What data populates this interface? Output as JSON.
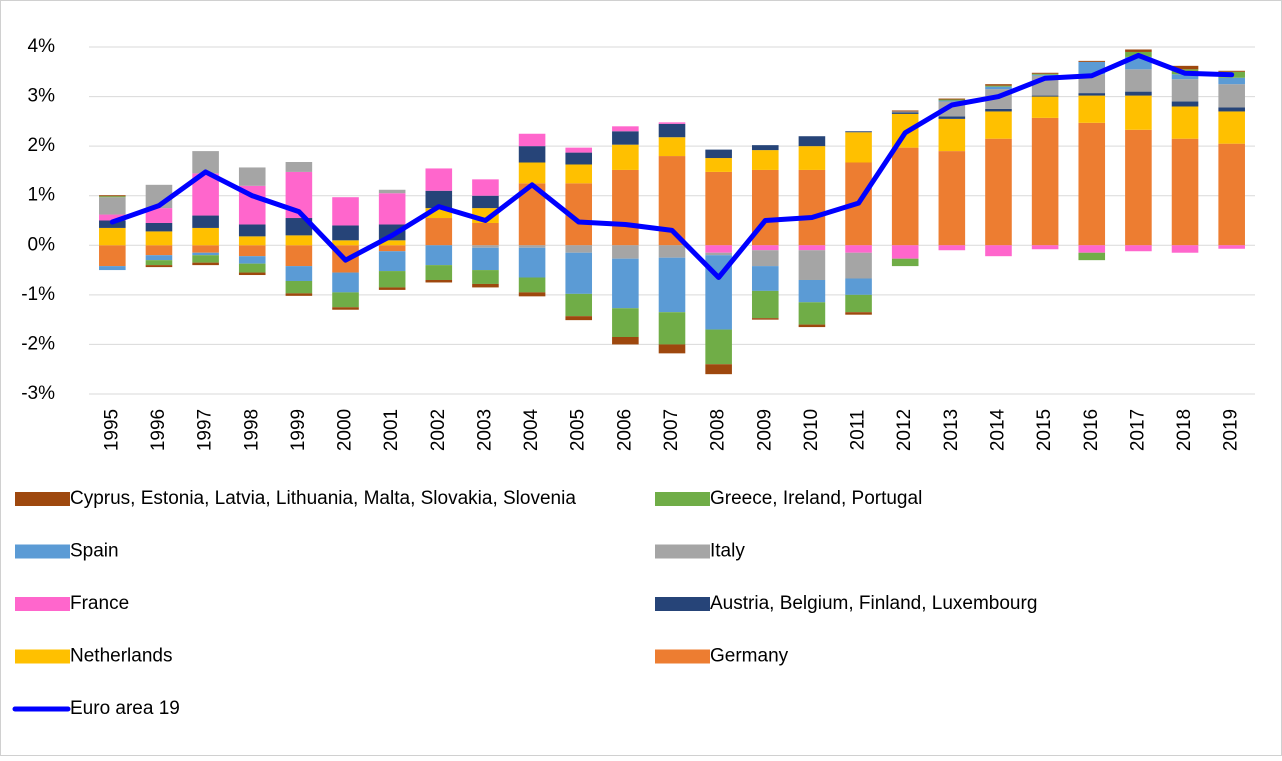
{
  "chart_data": {
    "type": "bar",
    "stacked": true,
    "categories": [
      "1995",
      "1996",
      "1997",
      "1998",
      "1999",
      "2000",
      "2001",
      "2002",
      "2003",
      "2004",
      "2005",
      "2006",
      "2007",
      "2008",
      "2009",
      "2010",
      "2011",
      "2012",
      "2013",
      "2014",
      "2015",
      "2016",
      "2017",
      "2018",
      "2019"
    ],
    "ylim": [
      -3,
      4
    ],
    "yticks": [
      {
        "value": -3,
        "label": "-3%"
      },
      {
        "value": -2,
        "label": "-2%"
      },
      {
        "value": -1,
        "label": "-1%"
      },
      {
        "value": 0,
        "label": "0%"
      },
      {
        "value": 1,
        "label": "1%"
      },
      {
        "value": 2,
        "label": "2%"
      },
      {
        "value": 3,
        "label": "3%"
      },
      {
        "value": 4,
        "label": "4%"
      }
    ],
    "grid": true,
    "legend": "bottom",
    "series": [
      {
        "name": "Cyprus, Estonia, Latvia, Lithuania, Malta, Slovakia, Slovenia",
        "color": "#9e480e",
        "values": [
          0.02,
          -0.04,
          -0.05,
          -0.05,
          -0.05,
          -0.05,
          -0.05,
          -0.05,
          -0.07,
          -0.08,
          -0.08,
          -0.15,
          -0.18,
          -0.2,
          -0.03,
          -0.05,
          -0.05,
          0.02,
          0.02,
          0.03,
          0.02,
          0.02,
          0.05,
          0.07,
          0.02
        ]
      },
      {
        "name": "Greece, Ireland, Portugal",
        "color": "#70ad47",
        "values": [
          0.02,
          -0.1,
          -0.15,
          -0.18,
          -0.25,
          -0.3,
          -0.33,
          -0.3,
          -0.28,
          -0.3,
          -0.45,
          -0.58,
          -0.65,
          -0.7,
          -0.55,
          -0.45,
          -0.35,
          -0.15,
          0.02,
          0.02,
          0.02,
          -0.15,
          0.1,
          0.1,
          0.12
        ]
      },
      {
        "name": "Spain",
        "color": "#5b9bd5",
        "values": [
          -0.08,
          -0.1,
          -0.05,
          -0.15,
          -0.3,
          -0.4,
          -0.4,
          -0.4,
          -0.45,
          -0.6,
          -0.83,
          -1.0,
          -1.1,
          -1.5,
          -0.5,
          -0.45,
          -0.33,
          0,
          0.02,
          0.05,
          0.02,
          0.25,
          0.25,
          0.1,
          0.13
        ]
      },
      {
        "name": "Italy",
        "color": "#a5a5a5",
        "values": [
          0.35,
          0.47,
          0.45,
          0.37,
          0.2,
          0,
          0.07,
          0,
          -0.05,
          -0.05,
          -0.15,
          -0.27,
          -0.25,
          -0.05,
          -0.32,
          -0.6,
          -0.52,
          0.02,
          0.3,
          0.4,
          0.4,
          0.38,
          0.45,
          0.45,
          0.47
        ]
      },
      {
        "name": "France",
        "color": "#ff66cc",
        "values": [
          0.12,
          0.3,
          0.85,
          0.78,
          0.93,
          0.57,
          0.63,
          0.45,
          0.33,
          0.25,
          0.1,
          0.1,
          0.03,
          -0.15,
          -0.1,
          -0.1,
          -0.15,
          -0.27,
          -0.1,
          -0.22,
          -0.08,
          -0.15,
          -0.12,
          -0.15,
          -0.07
        ]
      },
      {
        "name": "Austria, Belgium, Finland, Luxembourg",
        "color": "#264478",
        "values": [
          0.15,
          0.17,
          0.25,
          0.24,
          0.35,
          0.3,
          0.32,
          0.35,
          0.25,
          0.33,
          0.24,
          0.27,
          0.27,
          0.17,
          0.1,
          0.2,
          0.02,
          0.03,
          0.05,
          0.05,
          0.02,
          0.05,
          0.08,
          0.1,
          0.08
        ]
      },
      {
        "name": "Netherlands",
        "color": "#ffc000",
        "values": [
          0.35,
          0.28,
          0.35,
          0.18,
          0.2,
          0.1,
          0.1,
          0.2,
          0.3,
          0.42,
          0.38,
          0.51,
          0.38,
          0.28,
          0.4,
          0.48,
          0.61,
          0.68,
          0.65,
          0.55,
          0.43,
          0.55,
          0.69,
          0.65,
          0.65
        ]
      },
      {
        "name": "Germany",
        "color": "#ed7d31",
        "values": [
          -0.42,
          -0.2,
          -0.15,
          -0.22,
          -0.42,
          -0.55,
          -0.12,
          0.55,
          0.45,
          1.25,
          1.25,
          1.52,
          1.8,
          1.48,
          1.52,
          1.52,
          1.67,
          1.97,
          1.9,
          2.15,
          2.57,
          2.47,
          2.33,
          2.15,
          2.05
        ]
      },
      {
        "name": "Euro area 19",
        "color": "#0000ff",
        "type": "line",
        "values": [
          0.47,
          0.8,
          1.48,
          1.0,
          0.68,
          -0.3,
          0.2,
          0.78,
          0.5,
          1.22,
          0.47,
          0.42,
          0.3,
          -0.65,
          0.5,
          0.56,
          0.85,
          2.27,
          2.83,
          3.0,
          3.37,
          3.42,
          3.83,
          3.47,
          3.44
        ]
      }
    ]
  }
}
